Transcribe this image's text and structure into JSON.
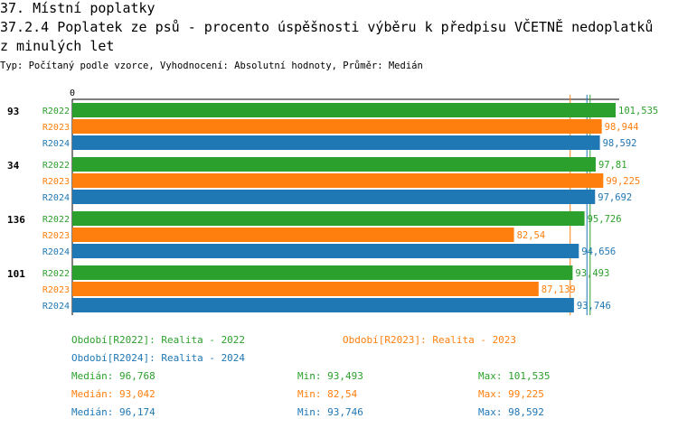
{
  "header": {
    "line1": "37. Místní poplatky",
    "line2": "37.2.4 Poplatek ze psů - procento úspěšnosti výběru k předpisu VČETNĚ nedoplatků",
    "line3": "z minulých let",
    "subtitle": "Typ: Počítaný podle vzorce, Vyhodnocení: Absolutní hodnoty, Průměr: Medián"
  },
  "chart_data": {
    "type": "bar",
    "orientation": "horizontal",
    "axis_zero_label": "0",
    "xlim": [
      0,
      101.535
    ],
    "groups": [
      {
        "id": "93",
        "bars": [
          {
            "series": "R2022",
            "value": 101.535,
            "label": "101,535"
          },
          {
            "series": "R2023",
            "value": 98.944,
            "label": "98,944"
          },
          {
            "series": "R2024",
            "value": 98.592,
            "label": "98,592"
          }
        ]
      },
      {
        "id": "34",
        "bars": [
          {
            "series": "R2022",
            "value": 97.81,
            "label": "97,81"
          },
          {
            "series": "R2023",
            "value": 99.225,
            "label": "99,225"
          },
          {
            "series": "R2024",
            "value": 97.692,
            "label": "97,692"
          }
        ]
      },
      {
        "id": "136",
        "bars": [
          {
            "series": "R2022",
            "value": 95.726,
            "label": "95,726"
          },
          {
            "series": "R2023",
            "value": 82.54,
            "label": "82,54"
          },
          {
            "series": "R2024",
            "value": 94.656,
            "label": "94,656"
          }
        ]
      },
      {
        "id": "101",
        "bars": [
          {
            "series": "R2022",
            "value": 93.493,
            "label": "93,493"
          },
          {
            "series": "R2023",
            "value": 87.139,
            "label": "87,139"
          },
          {
            "series": "R2024",
            "value": 93.746,
            "label": "93,746"
          }
        ]
      }
    ],
    "series_colors": {
      "R2022": "#2ca02c",
      "R2023": "#ff7f0e",
      "R2024": "#1f77b4"
    },
    "median_lines": [
      {
        "series": "R2022",
        "value": 96.768
      },
      {
        "series": "R2023",
        "value": 93.042
      },
      {
        "series": "R2024",
        "value": 96.174
      }
    ],
    "legend": {
      "r2022": "Období[R2022]: Realita - 2022",
      "r2023": "Období[R2023]: Realita - 2023",
      "r2024": "Období[R2024]: Realita - 2024"
    },
    "stats": {
      "r2022": {
        "median": "Medián: 96,768",
        "min": "Min: 93,493",
        "max": "Max: 101,535"
      },
      "r2023": {
        "median": "Medián: 93,042",
        "min": "Min: 82,54",
        "max": "Max: 99,225"
      },
      "r2024": {
        "median": "Medián: 96,174",
        "min": "Min: 93,746",
        "max": "Max: 98,592"
      }
    }
  }
}
